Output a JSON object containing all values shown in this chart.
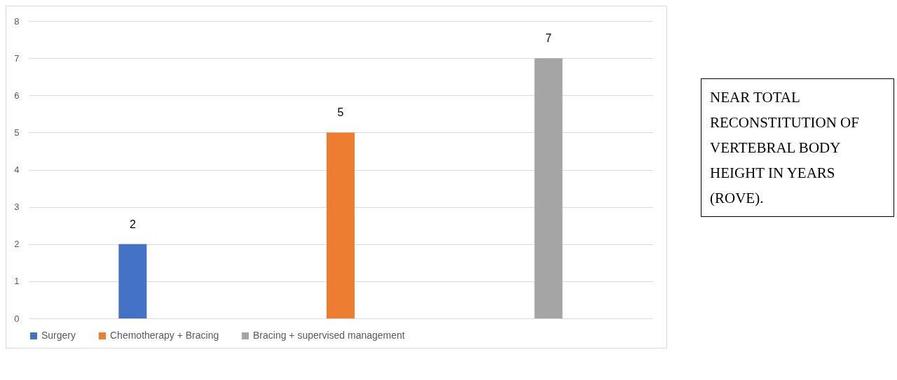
{
  "chart_data": {
    "type": "bar",
    "title": "NEAR TOTAL RECONSTITUTION OF VERTEBRAL BODY HEIGHT IN YEARS (ROVE).",
    "categories": [
      null,
      null,
      null
    ],
    "series": [
      {
        "name": "Surgery",
        "color": "#4472c4",
        "values": [
          2,
          null,
          null
        ]
      },
      {
        "name": "Chemotherapy + Bracing",
        "color": "#ed7d31",
        "values": [
          null,
          5,
          null
        ]
      },
      {
        "name": "Bracing + supervised management",
        "color": "#a5a5a5",
        "values": [
          null,
          null,
          7
        ]
      }
    ],
    "ylim": [
      0,
      8
    ],
    "yticks": [
      0,
      1,
      2,
      3,
      4,
      5,
      6,
      7,
      8
    ],
    "grid": "y",
    "legend": "bottom",
    "data_labels": true
  }
}
